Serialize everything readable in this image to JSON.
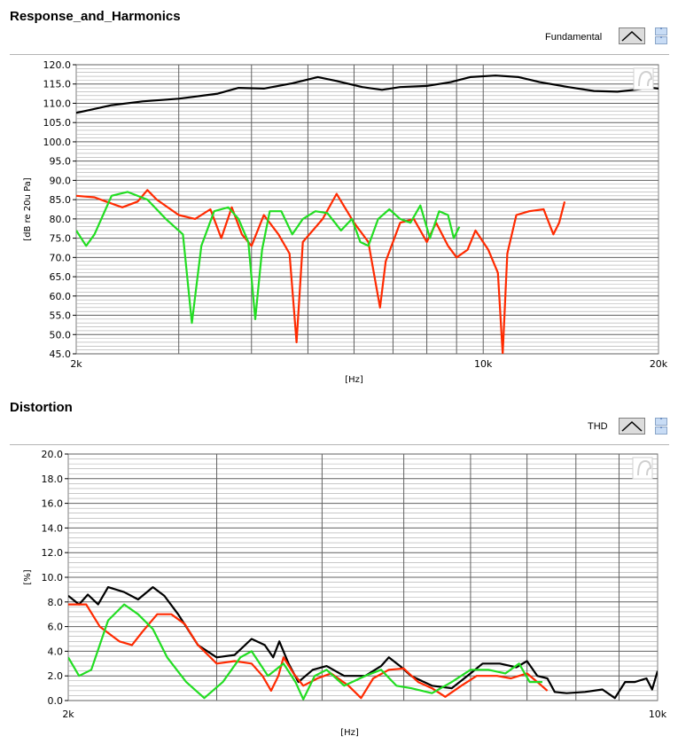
{
  "panels": [
    {
      "title": "Response_and_Harmonics",
      "legend_label": "Fundamental",
      "chart_data": {
        "type": "line",
        "xscale": "log",
        "xlim": [
          2000,
          20000
        ],
        "ylim": [
          45,
          120
        ],
        "ylabel": "[dB re 20u Pa]",
        "xlabel": "[Hz]",
        "x_tick_labels": [
          {
            "value": 2000,
            "label": "2k"
          },
          {
            "value": 10000,
            "label": "10k"
          },
          {
            "value": 20000,
            "label": "20k"
          }
        ],
        "y_ticks": [
          45,
          50,
          55,
          60,
          65,
          70,
          75,
          80,
          85,
          90,
          95,
          100,
          105,
          110,
          115,
          120
        ],
        "y_tick_labels": [
          "45.0",
          "50.0",
          "55.0",
          "60.0",
          "65.0",
          "70.0",
          "75.0",
          "80.0",
          "85.0",
          "90.0",
          "95.0",
          "100.0",
          "105.0",
          "110.0",
          "115.0",
          "120.0"
        ],
        "grid": true,
        "series": [
          {
            "color": "#000000",
            "points": [
              [
                2000,
                107.5
              ],
              [
                2100,
                108.2
              ],
              [
                2300,
                109.5
              ],
              [
                2600,
                110.5
              ],
              [
                3000,
                111.2
              ],
              [
                3500,
                112.5
              ],
              [
                3800,
                114
              ],
              [
                4200,
                113.8
              ],
              [
                4700,
                115.2
              ],
              [
                5200,
                116.8
              ],
              [
                5600,
                115.8
              ],
              [
                6200,
                114.2
              ],
              [
                6700,
                113.5
              ],
              [
                7200,
                114.2
              ],
              [
                8000,
                114.5
              ],
              [
                8800,
                115.5
              ],
              [
                9500,
                116.8
              ],
              [
                10500,
                117.2
              ],
              [
                11500,
                116.8
              ],
              [
                12500,
                115.5
              ],
              [
                14000,
                114.2
              ],
              [
                15500,
                113.2
              ],
              [
                17000,
                113
              ],
              [
                18500,
                113.6
              ],
              [
                19500,
                114
              ],
              [
                20000,
                113.8
              ]
            ]
          },
          {
            "color": "#ff2a00",
            "points": [
              [
                2000,
                86
              ],
              [
                2150,
                85.6
              ],
              [
                2250,
                84.5
              ],
              [
                2400,
                83
              ],
              [
                2550,
                84.5
              ],
              [
                2650,
                87.5
              ],
              [
                2750,
                85
              ],
              [
                3000,
                81
              ],
              [
                3200,
                80
              ],
              [
                3400,
                82.5
              ],
              [
                3550,
                75
              ],
              [
                3700,
                83
              ],
              [
                3850,
                76
              ],
              [
                4000,
                73
              ],
              [
                4200,
                81
              ],
              [
                4450,
                76
              ],
              [
                4650,
                71
              ],
              [
                4780,
                48
              ],
              [
                4900,
                74
              ],
              [
                5300,
                80
              ],
              [
                5600,
                86.5
              ],
              [
                6000,
                79
              ],
              [
                6350,
                74
              ],
              [
                6650,
                57
              ],
              [
                6800,
                69
              ],
              [
                7200,
                79
              ],
              [
                7600,
                80
              ],
              [
                8000,
                74
              ],
              [
                8300,
                79
              ],
              [
                8700,
                73
              ],
              [
                9000,
                70
              ],
              [
                9400,
                72
              ],
              [
                9700,
                77
              ],
              [
                10200,
                72
              ],
              [
                10600,
                66
              ],
              [
                10800,
                45
              ],
              [
                11000,
                71
              ],
              [
                11400,
                81
              ],
              [
                12000,
                82
              ],
              [
                12700,
                82.5
              ],
              [
                13200,
                76
              ],
              [
                13500,
                79
              ],
              [
                13800,
                84.5
              ]
            ]
          },
          {
            "color": "#22dd22",
            "points": [
              [
                2000,
                77
              ],
              [
                2080,
                73
              ],
              [
                2150,
                76
              ],
              [
                2300,
                86
              ],
              [
                2450,
                87
              ],
              [
                2650,
                85
              ],
              [
                2850,
                80
              ],
              [
                3050,
                76
              ],
              [
                3160,
                53
              ],
              [
                3280,
                73
              ],
              [
                3450,
                82
              ],
              [
                3650,
                83
              ],
              [
                3800,
                80
              ],
              [
                3950,
                74
              ],
              [
                4060,
                54
              ],
              [
                4170,
                72
              ],
              [
                4300,
                82
              ],
              [
                4500,
                82
              ],
              [
                4700,
                76
              ],
              [
                4900,
                80
              ],
              [
                5150,
                82
              ],
              [
                5400,
                81.5
              ],
              [
                5700,
                77
              ],
              [
                5950,
                80
              ],
              [
                6150,
                74
              ],
              [
                6350,
                73
              ],
              [
                6600,
                80
              ],
              [
                6900,
                82.5
              ],
              [
                7200,
                80
              ],
              [
                7500,
                79
              ],
              [
                7800,
                83.5
              ],
              [
                8100,
                75
              ],
              [
                8400,
                82
              ],
              [
                8700,
                81
              ],
              [
                8900,
                75
              ],
              [
                9100,
                78
              ]
            ]
          }
        ]
      }
    },
    {
      "title": "Distortion",
      "legend_label": "THD",
      "chart_data": {
        "type": "line",
        "xscale": "log",
        "xlim": [
          2000,
          10000
        ],
        "ylim": [
          0,
          20
        ],
        "ylabel": "[%]",
        "xlabel": "[Hz]",
        "x_tick_labels": [
          {
            "value": 2000,
            "label": "2k"
          },
          {
            "value": 10000,
            "label": "10k"
          }
        ],
        "y_ticks": [
          0,
          2,
          4,
          6,
          8,
          10,
          12,
          14,
          16,
          18,
          20
        ],
        "y_tick_labels": [
          "0.0",
          "2.0",
          "4.0",
          "6.0",
          "8.0",
          "10.0",
          "12.0",
          "14.0",
          "16.0",
          "18.0",
          "20.0"
        ],
        "grid": true,
        "series": [
          {
            "color": "#000000",
            "points": [
              [
                2000,
                8.5
              ],
              [
                2060,
                7.8
              ],
              [
                2110,
                8.6
              ],
              [
                2170,
                7.8
              ],
              [
                2230,
                9.2
              ],
              [
                2330,
                8.8
              ],
              [
                2420,
                8.2
              ],
              [
                2520,
                9.2
              ],
              [
                2600,
                8.5
              ],
              [
                2700,
                7
              ],
              [
                2850,
                4.5
              ],
              [
                3000,
                3.5
              ],
              [
                3150,
                3.7
              ],
              [
                3300,
                5
              ],
              [
                3420,
                4.5
              ],
              [
                3500,
                3.5
              ],
              [
                3560,
                4.8
              ],
              [
                3650,
                3
              ],
              [
                3750,
                1.5
              ],
              [
                3900,
                2.5
              ],
              [
                4050,
                2.8
              ],
              [
                4250,
                2
              ],
              [
                4500,
                2
              ],
              [
                4700,
                2.8
              ],
              [
                4800,
                3.5
              ],
              [
                4950,
                2.8
              ],
              [
                5100,
                2
              ],
              [
                5400,
                1.2
              ],
              [
                5700,
                1
              ],
              [
                6000,
                2.2
              ],
              [
                6200,
                3
              ],
              [
                6500,
                3
              ],
              [
                6800,
                2.7
              ],
              [
                7000,
                3.2
              ],
              [
                7200,
                2
              ],
              [
                7400,
                1.8
              ],
              [
                7550,
                0.7
              ],
              [
                7800,
                0.6
              ],
              [
                8200,
                0.7
              ],
              [
                8600,
                0.9
              ],
              [
                8900,
                0.2
              ],
              [
                9150,
                1.5
              ],
              [
                9400,
                1.5
              ],
              [
                9700,
                1.8
              ],
              [
                9850,
                0.9
              ],
              [
                10000,
                2.4
              ]
            ]
          },
          {
            "color": "#ff2a00",
            "points": [
              [
                2000,
                7.8
              ],
              [
                2100,
                7.8
              ],
              [
                2180,
                6
              ],
              [
                2300,
                4.8
              ],
              [
                2380,
                4.5
              ],
              [
                2450,
                5.6
              ],
              [
                2550,
                7
              ],
              [
                2650,
                7
              ],
              [
                2750,
                6.2
              ],
              [
                2850,
                4.5
              ],
              [
                3000,
                3
              ],
              [
                3150,
                3.2
              ],
              [
                3300,
                3
              ],
              [
                3400,
                2
              ],
              [
                3480,
                0.8
              ],
              [
                3550,
                2
              ],
              [
                3600,
                3.5
              ],
              [
                3700,
                2.2
              ],
              [
                3800,
                1.2
              ],
              [
                3950,
                1.8
              ],
              [
                4100,
                2.2
              ],
              [
                4300,
                1.2
              ],
              [
                4450,
                0.2
              ],
              [
                4600,
                1.8
              ],
              [
                4800,
                2.5
              ],
              [
                5000,
                2.6
              ],
              [
                5200,
                1.5
              ],
              [
                5400,
                1
              ],
              [
                5600,
                0.3
              ],
              [
                5850,
                1.2
              ],
              [
                6100,
                2
              ],
              [
                6450,
                2
              ],
              [
                6700,
                1.8
              ],
              [
                7000,
                2.2
              ],
              [
                7200,
                1.5
              ],
              [
                7400,
                0.8
              ]
            ]
          },
          {
            "color": "#22dd22",
            "points": [
              [
                2000,
                3.5
              ],
              [
                2060,
                2
              ],
              [
                2130,
                2.5
              ],
              [
                2230,
                6.5
              ],
              [
                2330,
                7.8
              ],
              [
                2420,
                7
              ],
              [
                2520,
                5.8
              ],
              [
                2620,
                3.5
              ],
              [
                2760,
                1.5
              ],
              [
                2900,
                0.2
              ],
              [
                3050,
                1.5
              ],
              [
                3200,
                3.5
              ],
              [
                3300,
                4
              ],
              [
                3450,
                2
              ],
              [
                3600,
                3
              ],
              [
                3720,
                1.5
              ],
              [
                3800,
                0.1
              ],
              [
                3920,
                2
              ],
              [
                4050,
                2.5
              ],
              [
                4250,
                1.2
              ],
              [
                4500,
                2
              ],
              [
                4700,
                2.5
              ],
              [
                4900,
                1.2
              ],
              [
                5100,
                1
              ],
              [
                5400,
                0.6
              ],
              [
                5700,
                1.5
              ],
              [
                6000,
                2.5
              ],
              [
                6300,
                2.5
              ],
              [
                6600,
                2.2
              ],
              [
                6850,
                3
              ],
              [
                7050,
                1.5
              ],
              [
                7300,
                1.5
              ]
            ]
          }
        ]
      }
    }
  ]
}
